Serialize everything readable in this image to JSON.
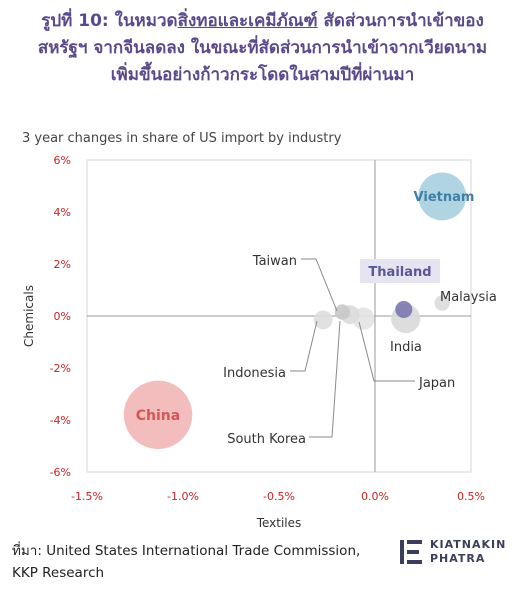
{
  "title": {
    "line1_pre": "รูปที่ 10: ในหมวด",
    "line1_underlined": "สิ่งทอและเคมีภัณฑ์",
    "line1_post": " สัดส่วนการนำเข้าของ",
    "line2": "สหรัฐฯ จากจีนลดลง ในขณะที่สัดส่วนการนำเข้าจากเวียดนาม",
    "line3": "เพิ่มขึ้นอย่างก้าวกระโดดในสามปีที่ผ่านมา"
  },
  "source": {
    "line1": "ที่มา: United States International Trade Commission,",
    "line2": "KKP Research"
  },
  "logo": {
    "line1": "KIATNAKIN",
    "line2": "PHATRA"
  },
  "chart_data": {
    "type": "scatter",
    "subtitle": "3 year changes in share of US import by industry",
    "xlabel": "Textiles",
    "ylabel": "Chemicals",
    "xlim": [
      -0.015,
      0.005
    ],
    "ylim": [
      -0.06,
      0.06
    ],
    "x_ticks": [
      -0.015,
      -0.01,
      -0.005,
      0.0,
      0.005
    ],
    "x_tick_labels": [
      "-1.5%",
      "-1.0%",
      "-0.5%",
      "0.0%",
      "0.5%"
    ],
    "y_ticks": [
      0.06,
      0.04,
      0.02,
      0.0,
      -0.02,
      -0.04,
      -0.06
    ],
    "y_tick_labels": [
      "6%",
      "4%",
      "2%",
      "0%",
      "-2%",
      "-4%",
      "-6%"
    ],
    "grid": false,
    "bubble_size": "relative",
    "points": [
      {
        "name": "Vietnam",
        "x": 0.0035,
        "y": 0.046,
        "size": 28,
        "color": "#a8cfe0",
        "label_color": "#3f7fa6",
        "label_bold": true
      },
      {
        "name": "China",
        "x": -0.0113,
        "y": -0.038,
        "size": 40,
        "color": "#f3b6b6",
        "label_color": "#d2565a",
        "label_bold": true
      },
      {
        "name": "Thailand",
        "x": 0.0015,
        "y": 0.0025,
        "size": 10,
        "color": "#7b78b0",
        "label_color": "#5b5699",
        "label_bold": true
      },
      {
        "name": "Malaysia",
        "x": 0.0035,
        "y": 0.005,
        "size": 9,
        "color": "#dcdcdc",
        "label_color": "#333333",
        "label_bold": false
      },
      {
        "name": "India",
        "x": 0.0016,
        "y": -0.001,
        "size": 17,
        "color": "#d9d9d9",
        "label_color": "#333333",
        "label_bold": false
      },
      {
        "name": "Japan",
        "x": -0.0006,
        "y": -0.001,
        "size": 13,
        "color": "#e3e3e3",
        "label_color": "#333333",
        "label_bold": false
      },
      {
        "name": "Taiwan",
        "x": -0.0017,
        "y": 0.0015,
        "size": 9,
        "color": "#c8c8c8",
        "label_color": "#333333",
        "label_bold": false
      },
      {
        "name": "South Korea",
        "x": -0.0013,
        "y": 0.0005,
        "size": 11,
        "color": "#dadada",
        "label_color": "#333333",
        "label_bold": false
      },
      {
        "name": "Indonesia",
        "x": -0.0027,
        "y": -0.0015,
        "size": 11,
        "color": "#dedede",
        "label_color": "#333333",
        "label_bold": false
      }
    ],
    "colors": {
      "axis_tick_labels": "#cc2222",
      "zero_line": "#9a9a9a",
      "frame": "#d6d6d6",
      "title": "#5b4a8b",
      "thailand_label_bg": "#e7e4f1"
    }
  }
}
